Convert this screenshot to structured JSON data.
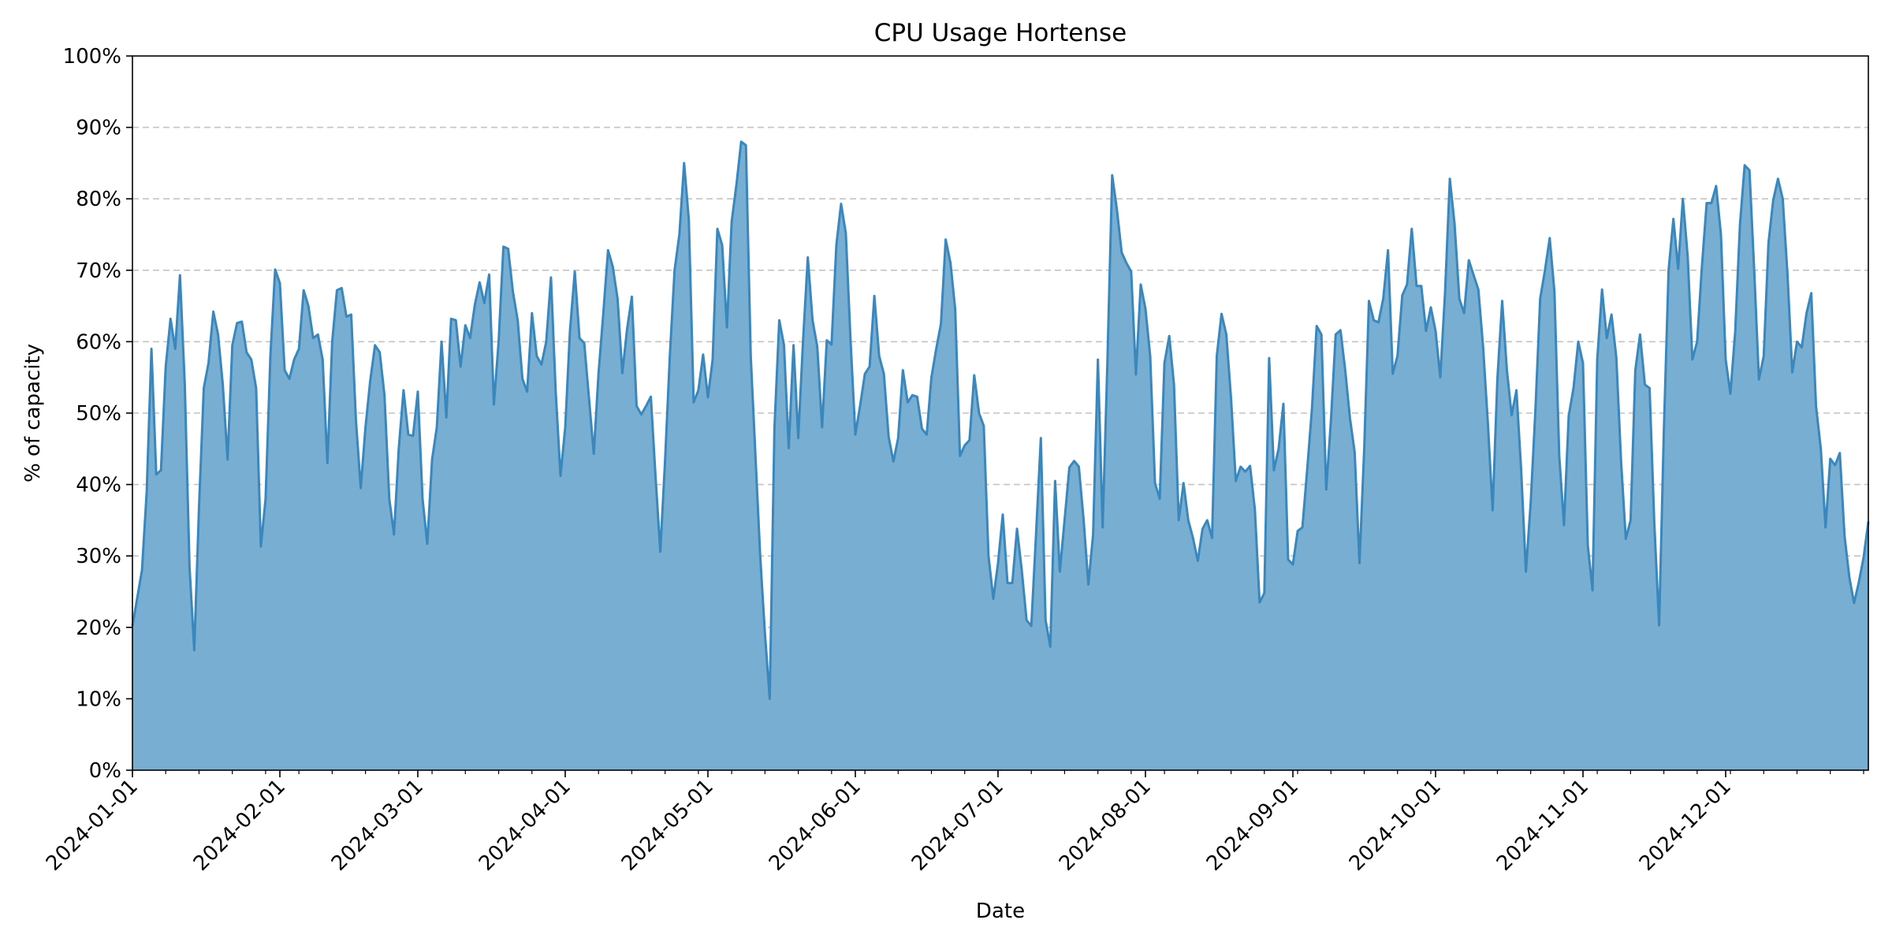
{
  "chart_data": {
    "type": "area",
    "title": "CPU Usage Hortense",
    "xlabel": "Date",
    "ylabel": "% of capacity",
    "ylim": [
      0,
      100
    ],
    "y_ticks": [
      "0%",
      "10%",
      "20%",
      "30%",
      "40%",
      "50%",
      "60%",
      "70%",
      "80%",
      "90%",
      "100%"
    ],
    "x_range": [
      "2024-01-01",
      "2024-12-31"
    ],
    "x_ticks": [
      "2024-01-01",
      "2024-02-01",
      "2024-03-01",
      "2024-04-01",
      "2024-05-01",
      "2024-06-01",
      "2024-07-01",
      "2024-08-01",
      "2024-09-01",
      "2024-10-01",
      "2024-11-01",
      "2024-12-01"
    ],
    "grid": "y-dashed",
    "line_color": "#3a87bd",
    "fill_color": "#78aed2",
    "series": [
      {
        "x": [
          "2024-01-01",
          "2024-01-03",
          "2024-01-04",
          "2024-01-05",
          "2024-01-06",
          "2024-01-07",
          "2024-01-08",
          "2024-01-09",
          "2024-01-10",
          "2024-01-11",
          "2024-01-12",
          "2024-01-13",
          "2024-01-14",
          "2024-01-15",
          "2024-01-16",
          "2024-01-17",
          "2024-01-18",
          "2024-01-19",
          "2024-01-20",
          "2024-01-21",
          "2024-01-22",
          "2024-01-23",
          "2024-01-24",
          "2024-01-25",
          "2024-01-26",
          "2024-01-27",
          "2024-01-28",
          "2024-01-29",
          "2024-01-30",
          "2024-01-31",
          "2024-02-01",
          "2024-02-02",
          "2024-02-03",
          "2024-02-04",
          "2024-02-05",
          "2024-02-06",
          "2024-02-07",
          "2024-02-08",
          "2024-02-09",
          "2024-02-10",
          "2024-02-11",
          "2024-02-12",
          "2024-02-13",
          "2024-02-14",
          "2024-02-15",
          "2024-02-16",
          "2024-02-17",
          "2024-02-18",
          "2024-02-19",
          "2024-02-20",
          "2024-02-21",
          "2024-02-22",
          "2024-02-23",
          "2024-02-24",
          "2024-02-25",
          "2024-02-26",
          "2024-02-27",
          "2024-02-28",
          "2024-02-29",
          "2024-03-01",
          "2024-03-02",
          "2024-03-03",
          "2024-03-04",
          "2024-03-05",
          "2024-03-06",
          "2024-03-07",
          "2024-03-08",
          "2024-03-09",
          "2024-03-10",
          "2024-03-11",
          "2024-03-12",
          "2024-03-13",
          "2024-03-14",
          "2024-03-15",
          "2024-03-16",
          "2024-03-17",
          "2024-03-18",
          "2024-03-19",
          "2024-03-20",
          "2024-03-21",
          "2024-03-22",
          "2024-03-23",
          "2024-03-24",
          "2024-03-25",
          "2024-03-26",
          "2024-03-27",
          "2024-03-28",
          "2024-03-29",
          "2024-03-30",
          "2024-03-31",
          "2024-04-01",
          "2024-04-02",
          "2024-04-03",
          "2024-04-04",
          "2024-04-05",
          "2024-04-06",
          "2024-04-07",
          "2024-04-08",
          "2024-04-09",
          "2024-04-10",
          "2024-04-11",
          "2024-04-12",
          "2024-04-13",
          "2024-04-14",
          "2024-04-15",
          "2024-04-16",
          "2024-04-17",
          "2024-04-18",
          "2024-04-19",
          "2024-04-20",
          "2024-04-21",
          "2024-04-22",
          "2024-04-23",
          "2024-04-24",
          "2024-04-25",
          "2024-04-26",
          "2024-04-27",
          "2024-04-28",
          "2024-04-29",
          "2024-04-30",
          "2024-05-01",
          "2024-05-02",
          "2024-05-03",
          "2024-05-04",
          "2024-05-05",
          "2024-05-06",
          "2024-05-07",
          "2024-05-08",
          "2024-05-09",
          "2024-05-10",
          "2024-05-11",
          "2024-05-12",
          "2024-05-13",
          "2024-05-14",
          "2024-05-15",
          "2024-05-16",
          "2024-05-17",
          "2024-05-18",
          "2024-05-19",
          "2024-05-20",
          "2024-05-21",
          "2024-05-22",
          "2024-05-23",
          "2024-05-24",
          "2024-05-25",
          "2024-05-26",
          "2024-05-27",
          "2024-05-28",
          "2024-05-29",
          "2024-05-30",
          "2024-05-31",
          "2024-06-01",
          "2024-06-02",
          "2024-06-03",
          "2024-06-04",
          "2024-06-05",
          "2024-06-06",
          "2024-06-07",
          "2024-06-08",
          "2024-06-09",
          "2024-06-10",
          "2024-06-11",
          "2024-06-12",
          "2024-06-13",
          "2024-06-14",
          "2024-06-15",
          "2024-06-16",
          "2024-06-17",
          "2024-06-18",
          "2024-06-19",
          "2024-06-20",
          "2024-06-21",
          "2024-06-22",
          "2024-06-23",
          "2024-06-24",
          "2024-06-25",
          "2024-06-26",
          "2024-06-27",
          "2024-06-28",
          "2024-06-29",
          "2024-06-30",
          "2024-07-01",
          "2024-07-02",
          "2024-07-03",
          "2024-07-04",
          "2024-07-05",
          "2024-07-06",
          "2024-07-07",
          "2024-07-08",
          "2024-07-09",
          "2024-07-10",
          "2024-07-11",
          "2024-07-12",
          "2024-07-13",
          "2024-07-14",
          "2024-07-15",
          "2024-07-16",
          "2024-07-17",
          "2024-07-18",
          "2024-07-19",
          "2024-07-20",
          "2024-07-21",
          "2024-07-22",
          "2024-07-23",
          "2024-07-24",
          "2024-07-25",
          "2024-07-26",
          "2024-07-27",
          "2024-07-28",
          "2024-07-29",
          "2024-07-30",
          "2024-07-31",
          "2024-08-01",
          "2024-08-02",
          "2024-08-03",
          "2024-08-04",
          "2024-08-05",
          "2024-08-06",
          "2024-08-07",
          "2024-08-08",
          "2024-08-09",
          "2024-08-10",
          "2024-08-11",
          "2024-08-12",
          "2024-08-13",
          "2024-08-14",
          "2024-08-15",
          "2024-08-16",
          "2024-08-17",
          "2024-08-18",
          "2024-08-19",
          "2024-08-20",
          "2024-08-21",
          "2024-08-22",
          "2024-08-23",
          "2024-08-24",
          "2024-08-25",
          "2024-08-26",
          "2024-08-27",
          "2024-08-28",
          "2024-08-29",
          "2024-08-30",
          "2024-08-31",
          "2024-09-01",
          "2024-09-02",
          "2024-09-03",
          "2024-09-04",
          "2024-09-05",
          "2024-09-06",
          "2024-09-07",
          "2024-09-08",
          "2024-09-09",
          "2024-09-10",
          "2024-09-11",
          "2024-09-12",
          "2024-09-13",
          "2024-09-14",
          "2024-09-15",
          "2024-09-16",
          "2024-09-17",
          "2024-09-18",
          "2024-09-19",
          "2024-09-20",
          "2024-09-21",
          "2024-09-22",
          "2024-09-23",
          "2024-09-24",
          "2024-09-25",
          "2024-09-26",
          "2024-09-27",
          "2024-09-28",
          "2024-09-29",
          "2024-09-30",
          "2024-10-01",
          "2024-10-02",
          "2024-10-03",
          "2024-10-04",
          "2024-10-05",
          "2024-10-06",
          "2024-10-07",
          "2024-10-08",
          "2024-10-09",
          "2024-10-10",
          "2024-10-11",
          "2024-10-12",
          "2024-10-13",
          "2024-10-14",
          "2024-10-15",
          "2024-10-16",
          "2024-10-17",
          "2024-10-18",
          "2024-10-19",
          "2024-10-20",
          "2024-10-21",
          "2024-10-22",
          "2024-10-23",
          "2024-10-24",
          "2024-10-25",
          "2024-10-26",
          "2024-10-27",
          "2024-10-28",
          "2024-10-29",
          "2024-10-30",
          "2024-10-31",
          "2024-11-01",
          "2024-11-02",
          "2024-11-03",
          "2024-11-04",
          "2024-11-05",
          "2024-11-06",
          "2024-11-07",
          "2024-11-08",
          "2024-11-09",
          "2024-11-10",
          "2024-11-11",
          "2024-11-12",
          "2024-11-13",
          "2024-11-14",
          "2024-11-15",
          "2024-11-16",
          "2024-11-17",
          "2024-11-18",
          "2024-11-19",
          "2024-11-20",
          "2024-11-21",
          "2024-11-22",
          "2024-11-23",
          "2024-11-24",
          "2024-11-25",
          "2024-11-26",
          "2024-11-27",
          "2024-11-28",
          "2024-11-29",
          "2024-11-30",
          "2024-12-01",
          "2024-12-02",
          "2024-12-03",
          "2024-12-04",
          "2024-12-05",
          "2024-12-06",
          "2024-12-07",
          "2024-12-08",
          "2024-12-09",
          "2024-12-10",
          "2024-12-11",
          "2024-12-12",
          "2024-12-13",
          "2024-12-14",
          "2024-12-15",
          "2024-12-16",
          "2024-12-17",
          "2024-12-18",
          "2024-12-19",
          "2024-12-20",
          "2024-12-21",
          "2024-12-22",
          "2024-12-23",
          "2024-12-24",
          "2024-12-25",
          "2024-12-26",
          "2024-12-27",
          "2024-12-28",
          "2024-12-29",
          "2024-12-30",
          "2024-12-31"
        ],
        "y": [
          20.2,
          28,
          39,
          59,
          41.4,
          42,
          56.5,
          63.2,
          59,
          69.3,
          54,
          28.5,
          16.8,
          37,
          53.5,
          57,
          64.2,
          61,
          54,
          43.5,
          59.5,
          62.6,
          62.8,
          58.5,
          57.5,
          53.5,
          31.3,
          38,
          58,
          70.1,
          68.2,
          56,
          54.8,
          57.5,
          59,
          67.2,
          65,
          60.5,
          61,
          57.5,
          43,
          60,
          67.2,
          67.5,
          63.5,
          63.8,
          49,
          39.5,
          48,
          54.5,
          59.5,
          58.5,
          52.5,
          38,
          33,
          45,
          53.2,
          47,
          46.8,
          53,
          38,
          31.7,
          43.5,
          48,
          60,
          49.4,
          63.2,
          63,
          56.5,
          62.3,
          60.5,
          65.2,
          68.3,
          65.4,
          69.4,
          51.2,
          60,
          73.3,
          73,
          67,
          63,
          54.8,
          53,
          64,
          58,
          56.8,
          60,
          69,
          53,
          41.2,
          48,
          61.5,
          69.8,
          60.5,
          59.8,
          52,
          44.3,
          55.5,
          64,
          72.8,
          70.5,
          66,
          55.6,
          61.7,
          66.3,
          51,
          49.8,
          51,
          52.3,
          41,
          30.6,
          43.5,
          58,
          70,
          75,
          85,
          77,
          51.5,
          53.2,
          58.2,
          52.2,
          57.5,
          75.8,
          73.5,
          62,
          76.8,
          82,
          88,
          87.5,
          58,
          44,
          30,
          19,
          10,
          48,
          63,
          59.5,
          45.1,
          59.5,
          46.5,
          60,
          71.8,
          63,
          59.3,
          48,
          60.2,
          59.6,
          73.5,
          79.3,
          75.2,
          60,
          47,
          51,
          55.5,
          56.5,
          66.4,
          58,
          55.5,
          46.7,
          43.2,
          46.5,
          56,
          51.5,
          52.5,
          52.3,
          47.8,
          47,
          55,
          59,
          62.5,
          74.3,
          71,
          64.5,
          44,
          45.5,
          46.2,
          55.3,
          50,
          48.2,
          30,
          24,
          29,
          35.8,
          26.2,
          26.2,
          33.8,
          28,
          21,
          20.2,
          33,
          46.5,
          21,
          17.3,
          40.5,
          27.8,
          35,
          42.4,
          43.3,
          42.5,
          35,
          26,
          33,
          57.5,
          34,
          57,
          83.3,
          78.5,
          72.5,
          71,
          69.8,
          55.4,
          68,
          64.6,
          58,
          40.2,
          38,
          57,
          60.8,
          54,
          35,
          40.2,
          35,
          32.5,
          29.3,
          33.8,
          35,
          32.5,
          58,
          63.9,
          61,
          52,
          40.5,
          42.5,
          41.8,
          42.6,
          36.5,
          23.5,
          24.8,
          57.7,
          42,
          45,
          51.3,
          29.5,
          28.8,
          33.5,
          34,
          42,
          50.6,
          62.2,
          61,
          39.3,
          49,
          61,
          61.6,
          56,
          49.3,
          44.5,
          29,
          45,
          65.7,
          63,
          62.7,
          66,
          72.8,
          55.5,
          58,
          66.5,
          68,
          75.8,
          67.8,
          67.8,
          61.5,
          64.8,
          61.5,
          55,
          67,
          82.8,
          76.5,
          66,
          64,
          71.4,
          69.3,
          67.3,
          59.3,
          48.5,
          36.4,
          54.7,
          65.7,
          56,
          49.7,
          53.2,
          42,
          27.8,
          37.5,
          50.5,
          66,
          70,
          74.5,
          67,
          44,
          34.3,
          49.6,
          53.5,
          60,
          57,
          31.5,
          25.2,
          57.5,
          67.3,
          60.5,
          63.8,
          57.8,
          43.3,
          32.4,
          35,
          56,
          61,
          54,
          53.5,
          34.5,
          20.3,
          47.5,
          70,
          77.2,
          70.2,
          80,
          72,
          57.5,
          60,
          70.4,
          79.4,
          79.4,
          81.8,
          75,
          57.5,
          52.7,
          61.4,
          76.3,
          84.7,
          84,
          70,
          54.7,
          58,
          73.8,
          79.8,
          82.8,
          80,
          69.5,
          55.7,
          60,
          59.2,
          64,
          66.8,
          51,
          45,
          34,
          43.6,
          42.7,
          44.4,
          32.8,
          27,
          23.4,
          26.3,
          29.8,
          34.8
        ]
      }
    ]
  }
}
